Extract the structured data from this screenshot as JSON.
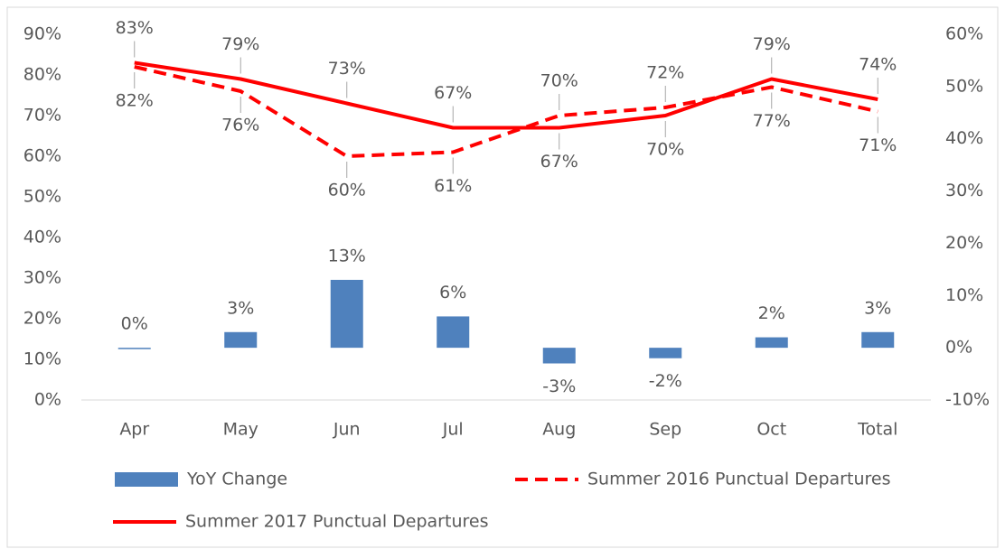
{
  "chart_data": {
    "type": "combo",
    "categories": [
      "Apr",
      "May",
      "Jun",
      "Jul",
      "Aug",
      "Sep",
      "Oct",
      "Total"
    ],
    "ylim": [
      0,
      90
    ],
    "yticks": [
      {
        "value": 0,
        "label": "0%"
      },
      {
        "value": 10,
        "label": "10%"
      },
      {
        "value": 20,
        "label": "20%"
      },
      {
        "value": 30,
        "label": "30%"
      },
      {
        "value": 40,
        "label": "40%"
      },
      {
        "value": 50,
        "label": "50%"
      },
      {
        "value": 60,
        "label": "60%"
      },
      {
        "value": 70,
        "label": "70%"
      },
      {
        "value": 80,
        "label": "80%"
      },
      {
        "value": 90,
        "label": "90%"
      }
    ],
    "y2lim": [
      -10,
      60
    ],
    "y2ticks": [
      {
        "value": -10,
        "label": "-10%"
      },
      {
        "value": 0,
        "label": "0%"
      },
      {
        "value": 10,
        "label": "10%"
      },
      {
        "value": 20,
        "label": "20%"
      },
      {
        "value": 30,
        "label": "30%"
      },
      {
        "value": 40,
        "label": "40%"
      },
      {
        "value": 50,
        "label": "50%"
      },
      {
        "value": 60,
        "label": "60%"
      }
    ],
    "grid": false,
    "series": [
      {
        "name": "YoY Change",
        "type": "bar",
        "axis": "y2",
        "color": "#4f81bd",
        "values": [
          0,
          3,
          13,
          6,
          -3,
          -2,
          2,
          3
        ],
        "value_labels": [
          "0%",
          "3%",
          "13%",
          "6%",
          "-3%",
          "-2%",
          "2%",
          "3%"
        ]
      },
      {
        "name": "Summer 2016 Punctual Departures",
        "type": "line",
        "dashed": true,
        "color": "#ff0000",
        "values": [
          82,
          76,
          60,
          61,
          70,
          72,
          77,
          71
        ],
        "value_labels": [
          "82%",
          "76%",
          "60%",
          "61%",
          "70%",
          "72%",
          "77%",
          "71%"
        ]
      },
      {
        "name": "Summer 2017 Punctual Departures",
        "type": "line",
        "dashed": false,
        "color": "#ff0000",
        "values": [
          83,
          79,
          73,
          67,
          67,
          70,
          79,
          74
        ],
        "value_labels": [
          "83%",
          "79%",
          "73%",
          "67%",
          "67%",
          "70%",
          "79%",
          "74%"
        ]
      }
    ]
  }
}
